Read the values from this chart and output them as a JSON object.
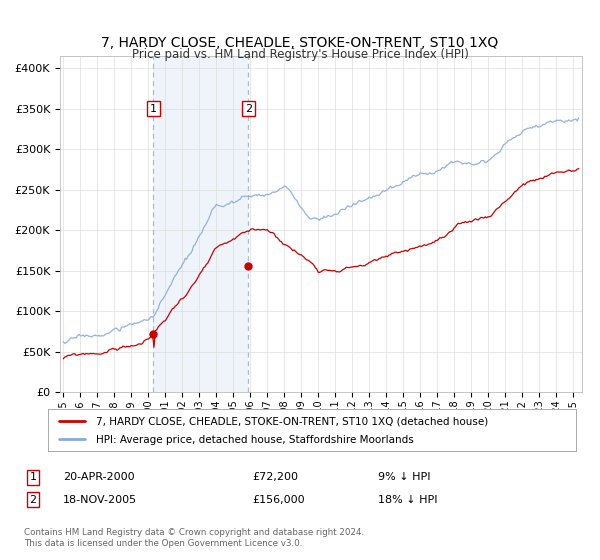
{
  "title": "7, HARDY CLOSE, CHEADLE, STOKE-ON-TRENT, ST10 1XQ",
  "subtitle": "Price paid vs. HM Land Registry's House Price Index (HPI)",
  "ylabel_ticks": [
    "£0",
    "£50K",
    "£100K",
    "£150K",
    "£200K",
    "£250K",
    "£300K",
    "£350K",
    "£400K"
  ],
  "ytick_values": [
    0,
    50000,
    100000,
    150000,
    200000,
    250000,
    300000,
    350000,
    400000
  ],
  "ylim": [
    0,
    415000
  ],
  "xlim_start": 1994.8,
  "xlim_end": 2025.5,
  "purchase1_year": 2000.29,
  "purchase1_price": 72200,
  "purchase2_year": 2005.88,
  "purchase2_price": 156000,
  "legend_line1": "7, HARDY CLOSE, CHEADLE, STOKE-ON-TRENT, ST10 1XQ (detached house)",
  "legend_line2": "HPI: Average price, detached house, Staffordshire Moorlands",
  "footer1": "Contains HM Land Registry data © Crown copyright and database right 2024.",
  "footer2": "This data is licensed under the Open Government Licence v3.0.",
  "red_color": "#cc0000",
  "blue_color": "#88aadd",
  "shade_color": "#dde8f5",
  "vline_color": "#aabbcc",
  "grid_color": "#dddddd",
  "bg_color": "#ffffff"
}
